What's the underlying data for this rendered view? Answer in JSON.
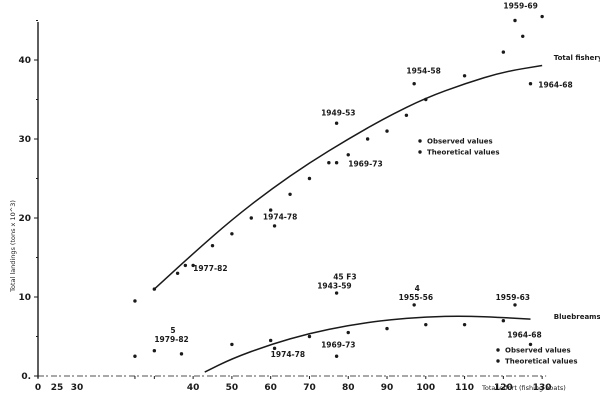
{
  "chart_data": {
    "type": "scatter",
    "title": "",
    "xlabel": "Total effort (fishing boats)",
    "ylabel": "Total landings (tons x 10^3)",
    "xlim": [
      0,
      130
    ],
    "ylim": [
      0,
      45
    ],
    "x_ticks": [
      0,
      25,
      30,
      40,
      50,
      60,
      70,
      80,
      90,
      100,
      110,
      120,
      130
    ],
    "y_ticks": [
      0,
      10,
      20,
      30,
      40
    ],
    "grid": false,
    "series": [
      {
        "name": "Total fishery - observed values",
        "kind": "points",
        "points": [
          [
            25,
            9.5
          ],
          [
            30,
            11.0
          ],
          [
            36,
            13.0
          ],
          [
            38,
            14.0
          ],
          [
            40,
            14.0
          ],
          [
            45,
            16.5
          ],
          [
            50,
            18.0
          ],
          [
            55,
            20.0
          ],
          [
            60,
            21.0
          ],
          [
            61,
            19.0
          ],
          [
            65,
            23.0
          ],
          [
            70,
            25.0
          ],
          [
            75,
            27.0
          ],
          [
            77,
            32.0
          ],
          [
            77,
            27.0
          ],
          [
            80,
            28.0
          ],
          [
            85,
            30.0
          ],
          [
            90,
            31.0
          ],
          [
            95,
            33.0
          ],
          [
            97,
            37.0
          ],
          [
            100,
            35.0
          ],
          [
            110,
            38.0
          ],
          [
            120,
            41.0
          ],
          [
            123,
            45.0
          ],
          [
            125,
            43.0
          ],
          [
            127,
            37.0
          ],
          [
            130,
            45.5
          ]
        ]
      },
      {
        "name": "Total fishery - theoretical curve",
        "kind": "curve",
        "points": [
          [
            30,
            11.0
          ],
          [
            40,
            15.5
          ],
          [
            50,
            19.8
          ],
          [
            60,
            23.6
          ],
          [
            70,
            27.0
          ],
          [
            80,
            30.0
          ],
          [
            90,
            32.8
          ],
          [
            100,
            35.2
          ],
          [
            110,
            37.0
          ],
          [
            120,
            38.5
          ],
          [
            130,
            39.3
          ]
        ]
      },
      {
        "name": "Bluebreams fishery - observed values",
        "kind": "points",
        "points": [
          [
            25,
            2.5
          ],
          [
            30,
            3.2
          ],
          [
            37,
            2.8
          ],
          [
            50,
            4.0
          ],
          [
            60,
            4.5
          ],
          [
            61,
            3.5
          ],
          [
            70,
            5.0
          ],
          [
            77,
            10.5
          ],
          [
            77,
            2.5
          ],
          [
            80,
            5.5
          ],
          [
            90,
            6.0
          ],
          [
            97,
            9.0
          ],
          [
            100,
            6.5
          ],
          [
            110,
            6.5
          ],
          [
            120,
            7.0
          ],
          [
            123,
            9.0
          ],
          [
            127,
            4.0
          ]
        ]
      },
      {
        "name": "Bluebreams fishery - theoretical curve",
        "kind": "curve",
        "points": [
          [
            43,
            0.5
          ],
          [
            50,
            2.2
          ],
          [
            60,
            4.0
          ],
          [
            70,
            5.4
          ],
          [
            80,
            6.4
          ],
          [
            90,
            7.1
          ],
          [
            100,
            7.5
          ],
          [
            110,
            7.6
          ],
          [
            120,
            7.4
          ],
          [
            127,
            7.2
          ]
        ]
      }
    ],
    "annotations": [
      {
        "text": "1959-69",
        "x": 120,
        "y": 46.5,
        "note": "5"
      },
      {
        "text": "Total fishery",
        "x": 133,
        "y": 40.0
      },
      {
        "text": "1964-68",
        "x": 129,
        "y": 36.5
      },
      {
        "text": "1954-58",
        "x": 95,
        "y": 38.3
      },
      {
        "text": "1949-53",
        "x": 73,
        "y": 33.0
      },
      {
        "text": "1969-73",
        "x": 80,
        "y": 26.5
      },
      {
        "text": "1974-78",
        "x": 58,
        "y": 19.8
      },
      {
        "text": "1977-82",
        "x": 40,
        "y": 13.3
      },
      {
        "text": "1943-59",
        "x": 72,
        "y": 11.1,
        "note": "45 F3"
      },
      {
        "text": "1955-56",
        "x": 93,
        "y": 9.6,
        "note": "4"
      },
      {
        "text": "1959-63",
        "x": 118,
        "y": 9.6
      },
      {
        "text": "Bluebreams fishery",
        "x": 133,
        "y": 7.2
      },
      {
        "text": "1964-68",
        "x": 121,
        "y": 4.9
      },
      {
        "text": "1979-82",
        "x": 30,
        "y": 4.3,
        "note": "5"
      },
      {
        "text": "1974-78",
        "x": 60,
        "y": 2.4
      },
      {
        "text": "1969-73",
        "x": 73,
        "y": 3.6
      }
    ],
    "legend": [
      {
        "label": "Observed values",
        "position": "upper-right, beside total fishery"
      },
      {
        "label": "Theoretical values",
        "position": "upper-right, beside total fishery"
      },
      {
        "label": "Observed values",
        "position": "lower-right, beside bluebreams fishery"
      },
      {
        "label": "Theoretical values",
        "position": "lower-right, beside bluebreams fishery"
      }
    ]
  },
  "legend_upper": [
    "Observed values",
    "Theoretical values"
  ],
  "legend_lower": [
    "Observed values",
    "Theoretical values"
  ]
}
